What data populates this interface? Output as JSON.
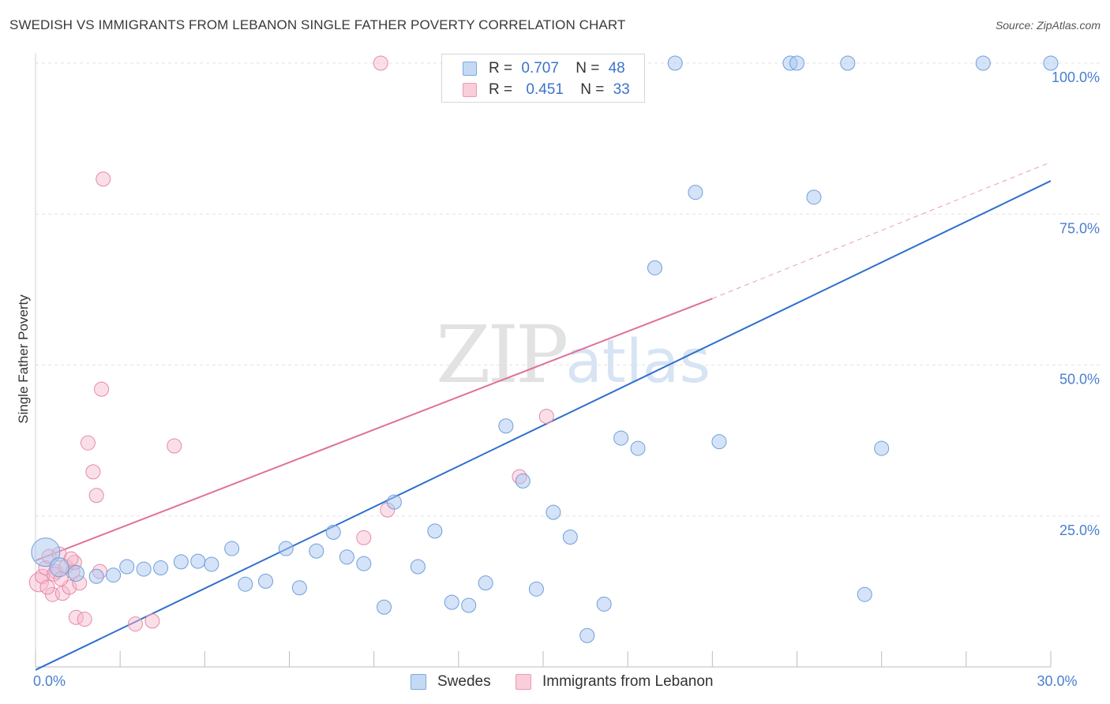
{
  "header": {
    "title": "SWEDISH VS IMMIGRANTS FROM LEBANON SINGLE FATHER POVERTY CORRELATION CHART",
    "source": "Source: ZipAtlas.com"
  },
  "watermark": {
    "zip": "ZIP",
    "atlas": "atlas"
  },
  "legend": {
    "rows": [
      {
        "r_label": "R =",
        "r_value": "0.707",
        "n_label": "N =",
        "n_value": "48",
        "color": "#a9c8f0"
      },
      {
        "r_label": "R =",
        "r_value": "0.451",
        "n_label": "N =",
        "n_value": "33",
        "color": "#f6b9cb"
      }
    ]
  },
  "bottom_legend": {
    "series1": "Swedes",
    "series2": "Immigrants from Lebanon"
  },
  "colors": {
    "swedes_fill": "#a9c8f0",
    "swedes_stroke": "#6f9fdc",
    "swedes_line": "#2f6fcc",
    "lebanon_fill": "#f6b9cb",
    "lebanon_stroke": "#e58aa6",
    "lebanon_line": "#e0719a",
    "tick_text": "#4a7fd0",
    "grid": "#e3e3e3"
  },
  "chart_data": {
    "type": "scatter",
    "title": "SWEDISH VS IMMIGRANTS FROM LEBANON SINGLE FATHER POVERTY CORRELATION CHART",
    "xlabel": "",
    "ylabel": "Single Father Poverty",
    "xlim": [
      0,
      30
    ],
    "ylim": [
      0,
      100
    ],
    "x_tick_labels": [
      {
        "value": 0,
        "label": "0.0%"
      },
      {
        "value": 30,
        "label": "30.0%"
      }
    ],
    "y_tick_labels": [
      {
        "value": 100,
        "label": "100.0%"
      },
      {
        "value": 75,
        "label": "75.0%"
      },
      {
        "value": 50,
        "label": "50.0%"
      },
      {
        "value": 25,
        "label": "25.0%"
      }
    ],
    "series": [
      {
        "name": "Swedes",
        "R": 0.707,
        "N": 48,
        "trend": {
          "x0": 0.0,
          "y0": -0.5,
          "x1": 30.0,
          "y1": 80.5
        },
        "points": [
          [
            0.3,
            19.0,
            18
          ],
          [
            0.7,
            16.5,
            12
          ],
          [
            1.2,
            15.5,
            10
          ],
          [
            1.8,
            15.0,
            9
          ],
          [
            2.3,
            15.2,
            9
          ],
          [
            2.7,
            16.6,
            9
          ],
          [
            3.2,
            16.2,
            9
          ],
          [
            3.7,
            16.4,
            9
          ],
          [
            4.3,
            17.4,
            9
          ],
          [
            4.8,
            17.5,
            9
          ],
          [
            5.2,
            17.0,
            9
          ],
          [
            5.8,
            19.6,
            9
          ],
          [
            6.2,
            13.7,
            9
          ],
          [
            6.8,
            14.2,
            9
          ],
          [
            7.4,
            19.6,
            9
          ],
          [
            7.8,
            13.1,
            9
          ],
          [
            8.3,
            19.2,
            9
          ],
          [
            8.8,
            22.3,
            9
          ],
          [
            9.2,
            18.2,
            9
          ],
          [
            9.7,
            17.1,
            9
          ],
          [
            10.3,
            9.9,
            9
          ],
          [
            10.6,
            27.3,
            9
          ],
          [
            11.3,
            16.6,
            9
          ],
          [
            11.8,
            22.5,
            9
          ],
          [
            12.3,
            10.7,
            9
          ],
          [
            12.8,
            10.2,
            9
          ],
          [
            13.3,
            13.9,
            9
          ],
          [
            13.9,
            39.9,
            9
          ],
          [
            14.4,
            30.8,
            9
          ],
          [
            14.8,
            12.9,
            9
          ],
          [
            15.3,
            25.6,
            9
          ],
          [
            15.8,
            21.5,
            9
          ],
          [
            16.3,
            5.2,
            9
          ],
          [
            16.8,
            10.4,
            9
          ],
          [
            17.3,
            37.9,
            9
          ],
          [
            17.8,
            36.2,
            9
          ],
          [
            18.3,
            66.1,
            9
          ],
          [
            18.9,
            100.0,
            9
          ],
          [
            19.5,
            78.6,
            9
          ],
          [
            20.2,
            37.3,
            9
          ],
          [
            22.3,
            100.0,
            9
          ],
          [
            22.5,
            100.0,
            9
          ],
          [
            23.0,
            77.8,
            9
          ],
          [
            24.0,
            100.0,
            9
          ],
          [
            24.5,
            12.0,
            9
          ],
          [
            25.0,
            36.2,
            9
          ],
          [
            28.0,
            100.0,
            9
          ],
          [
            30.0,
            100.0,
            9
          ]
        ]
      },
      {
        "name": "Immigrants from Lebanon",
        "R": 0.451,
        "N": 33,
        "trend": {
          "x0": 0.0,
          "y0": 17.6,
          "x1": 20.0,
          "y1": 61.0,
          "dash_to_x": 30.0,
          "dash_to_y": 83.6
        },
        "points": [
          [
            0.1,
            14.0,
            12
          ],
          [
            0.2,
            15.0,
            9
          ],
          [
            0.3,
            16.4,
            9
          ],
          [
            0.4,
            18.3,
            9
          ],
          [
            0.5,
            12.0,
            9
          ],
          [
            0.6,
            15.8,
            9
          ],
          [
            0.7,
            18.7,
            9
          ],
          [
            0.8,
            12.2,
            9
          ],
          [
            0.9,
            16.6,
            9
          ],
          [
            1.0,
            13.2,
            9
          ],
          [
            1.1,
            15.8,
            9
          ],
          [
            1.15,
            17.3,
            9
          ],
          [
            1.2,
            8.2,
            9
          ],
          [
            1.3,
            13.9,
            9
          ],
          [
            1.45,
            7.9,
            9
          ],
          [
            1.55,
            37.1,
            9
          ],
          [
            1.7,
            32.3,
            9
          ],
          [
            1.8,
            28.4,
            9
          ],
          [
            1.9,
            15.8,
            9
          ],
          [
            2.0,
            80.8,
            9
          ],
          [
            1.95,
            46.0,
            9
          ],
          [
            2.95,
            7.1,
            9
          ],
          [
            3.45,
            7.6,
            9
          ],
          [
            4.1,
            36.6,
            9
          ],
          [
            9.7,
            21.4,
            9
          ],
          [
            10.2,
            100.0,
            9
          ],
          [
            10.4,
            26.0,
            9
          ],
          [
            14.3,
            31.5,
            9
          ],
          [
            15.1,
            41.5,
            9
          ],
          [
            0.35,
            13.2,
            9
          ],
          [
            0.55,
            15.4,
            9
          ],
          [
            0.75,
            14.6,
            9
          ],
          [
            1.05,
            17.9,
            9
          ]
        ]
      }
    ]
  }
}
